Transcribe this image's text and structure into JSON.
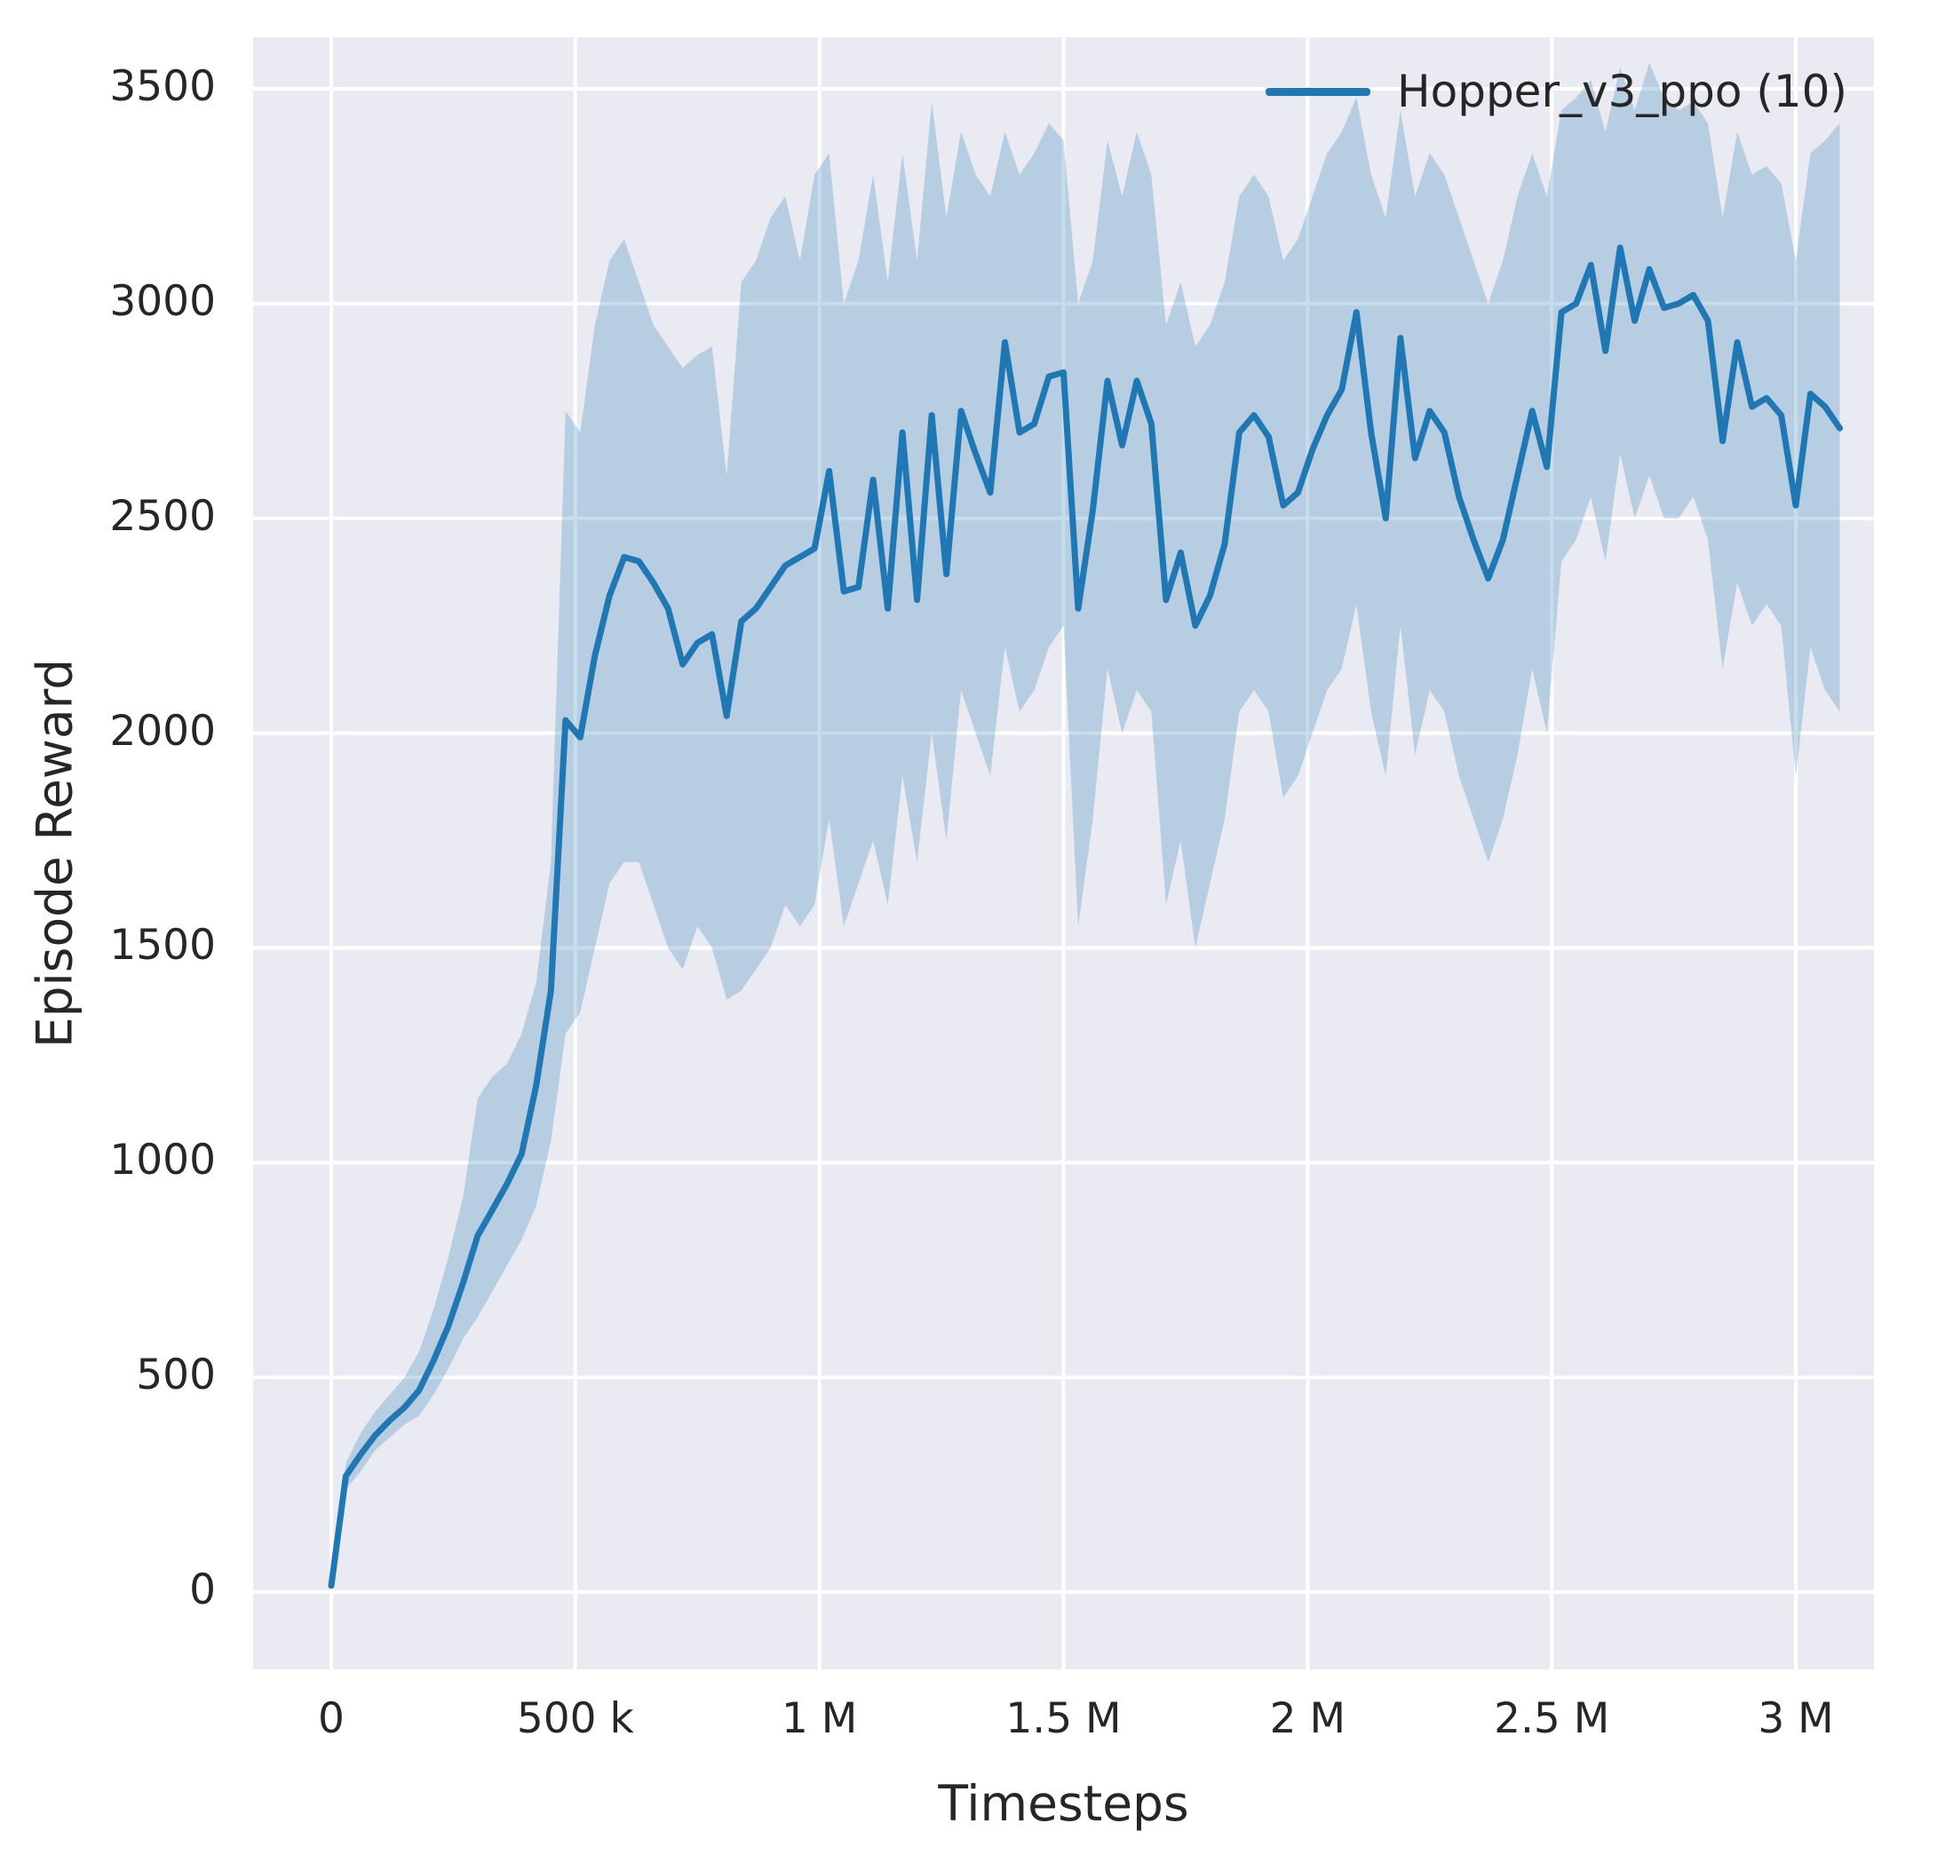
{
  "chart_data": {
    "type": "line",
    "title": "",
    "xlabel": "Timesteps",
    "ylabel": "Episode Reward",
    "legend_label": "Hopper_v3_ppo (10)",
    "legend_position": "upper right",
    "grid": true,
    "grid_color": "#ffffff",
    "background": "#eaeaf2",
    "xlim": [
      -160000,
      3160000
    ],
    "ylim": [
      -180,
      3620
    ],
    "x_ticks": [
      {
        "value": 0,
        "label": "0"
      },
      {
        "value": 500000,
        "label": "500 k"
      },
      {
        "value": 1000000,
        "label": "1 M"
      },
      {
        "value": 1500000,
        "label": "1.5 M"
      },
      {
        "value": 2000000,
        "label": "2 M"
      },
      {
        "value": 2500000,
        "label": "2.5 M"
      },
      {
        "value": 3000000,
        "label": "3 M"
      }
    ],
    "y_ticks": [
      {
        "value": 0,
        "label": "0"
      },
      {
        "value": 500,
        "label": "500"
      },
      {
        "value": 1000,
        "label": "1000"
      },
      {
        "value": 1500,
        "label": "1500"
      },
      {
        "value": 2000,
        "label": "2000"
      },
      {
        "value": 2500,
        "label": "2500"
      },
      {
        "value": 3000,
        "label": "3000"
      },
      {
        "value": 3500,
        "label": "3500"
      }
    ],
    "series": [
      {
        "name": "Hopper_v3_ppo (10)",
        "color": "#1f77b4",
        "band_fill": "rgba(31,119,180,0.25)",
        "x": [
          0,
          30000,
          60000,
          90000,
          120000,
          150000,
          180000,
          210000,
          240000,
          270000,
          300000,
          330000,
          360000,
          390000,
          420000,
          450000,
          480000,
          510000,
          540000,
          570000,
          600000,
          630000,
          660000,
          690000,
          720000,
          750000,
          780000,
          810000,
          840000,
          870000,
          900000,
          930000,
          960000,
          990000,
          1020000,
          1050000,
          1080000,
          1110000,
          1140000,
          1170000,
          1200000,
          1230000,
          1260000,
          1290000,
          1320000,
          1350000,
          1380000,
          1410000,
          1440000,
          1470000,
          1500000,
          1530000,
          1560000,
          1590000,
          1620000,
          1650000,
          1680000,
          1710000,
          1740000,
          1770000,
          1800000,
          1830000,
          1860000,
          1890000,
          1920000,
          1950000,
          1980000,
          2010000,
          2040000,
          2070000,
          2100000,
          2130000,
          2160000,
          2190000,
          2220000,
          2250000,
          2280000,
          2310000,
          2340000,
          2370000,
          2400000,
          2430000,
          2460000,
          2490000,
          2520000,
          2550000,
          2580000,
          2610000,
          2640000,
          2670000,
          2700000,
          2730000,
          2760000,
          2790000,
          2820000,
          2850000,
          2880000,
          2910000,
          2940000,
          2970000,
          3000000,
          3030000,
          3060000,
          3090000
        ],
        "mean": [
          15,
          270,
          320,
          365,
          400,
          430,
          470,
          540,
          620,
          720,
          830,
          890,
          950,
          1020,
          1180,
          1400,
          2030,
          1990,
          2180,
          2320,
          2410,
          2400,
          2350,
          2290,
          2160,
          2210,
          2230,
          2040,
          2260,
          2290,
          2340,
          2390,
          2410,
          2430,
          2610,
          2330,
          2340,
          2590,
          2290,
          2700,
          2310,
          2740,
          2370,
          2750,
          2650,
          2560,
          2910,
          2700,
          2720,
          2830,
          2840,
          2290,
          2520,
          2820,
          2670,
          2820,
          2720,
          2310,
          2420,
          2250,
          2320,
          2440,
          2700,
          2740,
          2690,
          2530,
          2560,
          2660,
          2740,
          2800,
          2980,
          2700,
          2500,
          2920,
          2640,
          2750,
          2700,
          2550,
          2450,
          2360,
          2450,
          2600,
          2750,
          2620,
          2980,
          3000,
          3090,
          2890,
          3130,
          2960,
          3080,
          2990,
          3000,
          3020,
          2960,
          2680,
          2910,
          2760,
          2780,
          2740,
          2530,
          2790,
          2760,
          2710
        ],
        "band_low": [
          5,
          240,
          280,
          330,
          360,
          390,
          410,
          460,
          520,
          590,
          640,
          700,
          760,
          820,
          900,
          1050,
          1300,
          1350,
          1500,
          1650,
          1700,
          1700,
          1600,
          1500,
          1450,
          1550,
          1500,
          1380,
          1400,
          1450,
          1500,
          1600,
          1550,
          1600,
          1800,
          1550,
          1650,
          1750,
          1600,
          1900,
          1700,
          2000,
          1750,
          2100,
          2000,
          1900,
          2200,
          2050,
          2100,
          2200,
          2250,
          1550,
          1800,
          2150,
          2000,
          2100,
          2050,
          1600,
          1750,
          1500,
          1650,
          1800,
          2050,
          2100,
          2050,
          1850,
          1900,
          2000,
          2100,
          2150,
          2300,
          2050,
          1900,
          2250,
          1950,
          2100,
          2050,
          1900,
          1800,
          1700,
          1800,
          1950,
          2150,
          2000,
          2400,
          2450,
          2550,
          2400,
          2650,
          2500,
          2600,
          2500,
          2500,
          2550,
          2450,
          2150,
          2350,
          2250,
          2300,
          2250,
          1900,
          2200,
          2100,
          2050
        ],
        "band_high": [
          30,
          300,
          370,
          420,
          460,
          500,
          560,
          660,
          780,
          920,
          1150,
          1200,
          1230,
          1300,
          1420,
          1700,
          2750,
          2700,
          2950,
          3100,
          3150,
          3050,
          2950,
          2900,
          2850,
          2880,
          2900,
          2600,
          3050,
          3100,
          3200,
          3250,
          3100,
          3300,
          3350,
          3000,
          3100,
          3300,
          3050,
          3350,
          3100,
          3470,
          3200,
          3400,
          3300,
          3250,
          3400,
          3300,
          3350,
          3420,
          3380,
          3000,
          3100,
          3380,
          3250,
          3400,
          3300,
          2950,
          3050,
          2900,
          2950,
          3050,
          3250,
          3300,
          3250,
          3100,
          3150,
          3250,
          3350,
          3400,
          3480,
          3300,
          3200,
          3450,
          3250,
          3350,
          3300,
          3200,
          3100,
          3000,
          3100,
          3250,
          3350,
          3250,
          3450,
          3480,
          3520,
          3400,
          3550,
          3450,
          3560,
          3480,
          3450,
          3470,
          3420,
          3200,
          3400,
          3300,
          3320,
          3280,
          3100,
          3350,
          3380,
          3420
        ]
      }
    ]
  }
}
